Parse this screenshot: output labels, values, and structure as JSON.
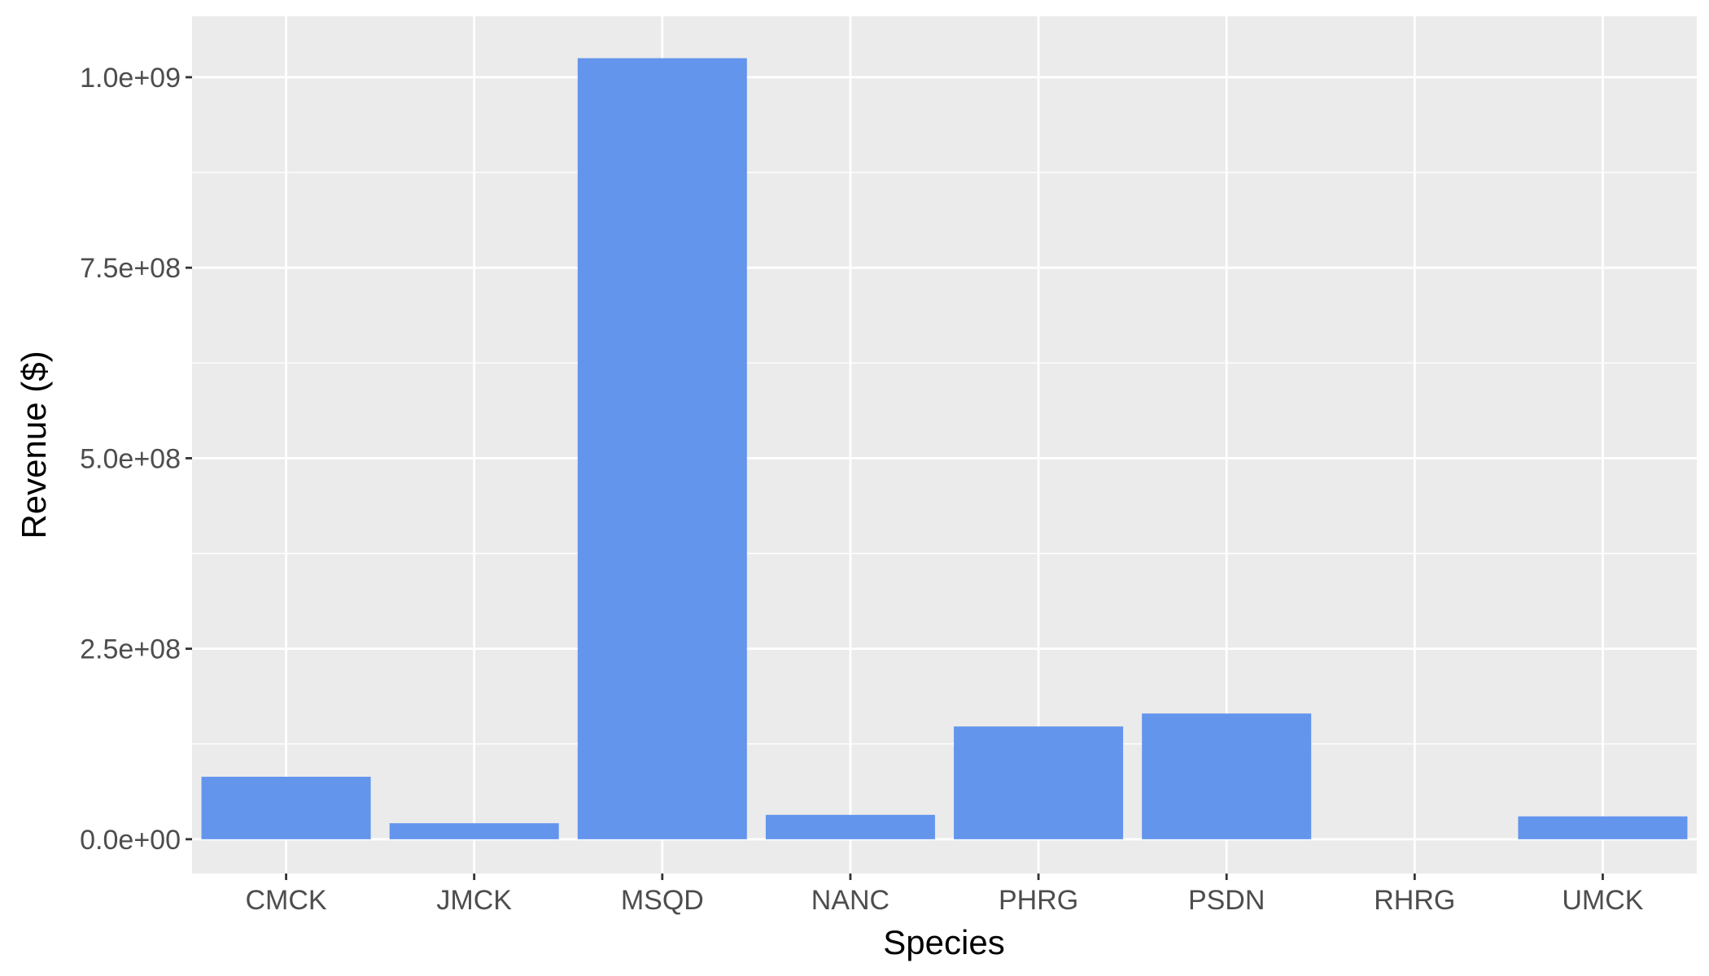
{
  "chart_data": {
    "type": "bar",
    "title": "",
    "xlabel": "Species",
    "ylabel": "Revenue ($)",
    "categories": [
      "CMCK",
      "JMCK",
      "MSQD",
      "NANC",
      "PHRG",
      "PSDN",
      "RHRG",
      "UMCK"
    ],
    "values": [
      82000000,
      21000000,
      1025000000,
      32000000,
      148000000,
      165000000,
      0,
      30000000
    ],
    "ylim": [
      -45000000,
      1080000000
    ],
    "yticks": [
      0,
      250000000,
      500000000,
      750000000,
      1000000000
    ],
    "ytick_labels": [
      "0.0e+00",
      "2.5e+08",
      "5.0e+08",
      "7.5e+08",
      "1.0e+09"
    ],
    "grid": true,
    "legend": "none",
    "colors": {
      "bar": "#6495ED",
      "panel": "#EBEBEB",
      "grid": "#FFFFFF",
      "tick_text": "#4D4D4D",
      "axis_title": "#000000",
      "tick_mark": "#333333"
    }
  }
}
